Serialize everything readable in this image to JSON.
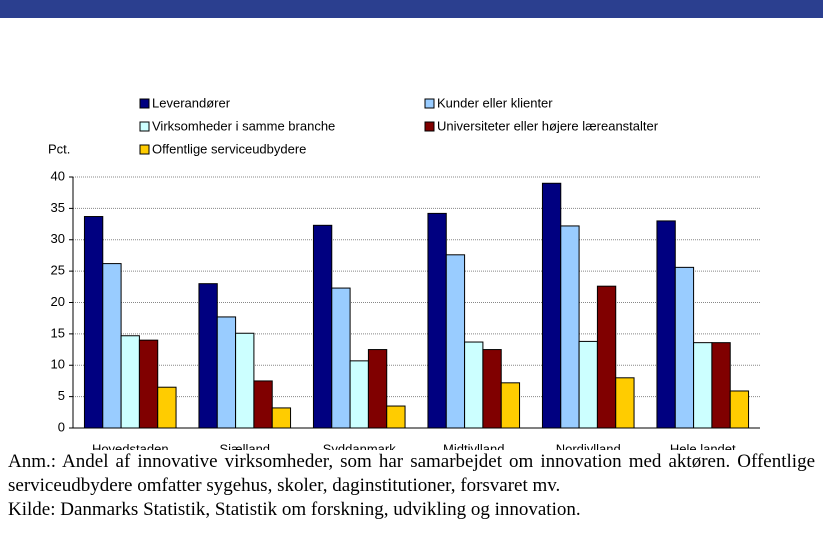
{
  "chart_data": {
    "type": "bar",
    "y_label": "Pct.",
    "categories": [
      "Hovedstaden",
      "Sjælland",
      "Syddanmark",
      "Midtjylland",
      "Nordjylland",
      "Hele landet"
    ],
    "series": [
      {
        "name": "Leverandører",
        "color": "#000080",
        "values": [
          33.7,
          23,
          32.3,
          34.2,
          39,
          33
        ]
      },
      {
        "name": "Kunder eller klienter",
        "color": "#99ccff",
        "values": [
          26.2,
          17.7,
          22.3,
          27.6,
          32.2,
          25.6
        ]
      },
      {
        "name": "Virksomheder i samme branche",
        "color": "#ccffff",
        "values": [
          14.7,
          15.1,
          10.7,
          13.7,
          13.8,
          13.6
        ]
      },
      {
        "name": "Universiteter eller højere læreanstalter",
        "color": "#800000",
        "values": [
          14,
          7.5,
          12.5,
          12.5,
          22.6,
          13.6
        ]
      },
      {
        "name": "Offentlige serviceudbydere",
        "color": "#ffcc00",
        "values": [
          6.5,
          3.2,
          3.5,
          7.2,
          8,
          5.9
        ]
      }
    ],
    "ylim": [
      0,
      40
    ],
    "yticks": [
      0,
      5,
      10,
      15,
      20,
      25,
      30,
      35,
      40
    ],
    "grid": true,
    "note": "Anm.: Andel af innovative virksomheder, som har samarbejdet om innovation med aktøren. Offentlige serviceudbydere omfatter sygehus, skoler, daginstitutioner, forsvaret mv.",
    "source": "Kilde: Danmarks Statistik, Statistik om forskning, udvikling og innovation."
  }
}
